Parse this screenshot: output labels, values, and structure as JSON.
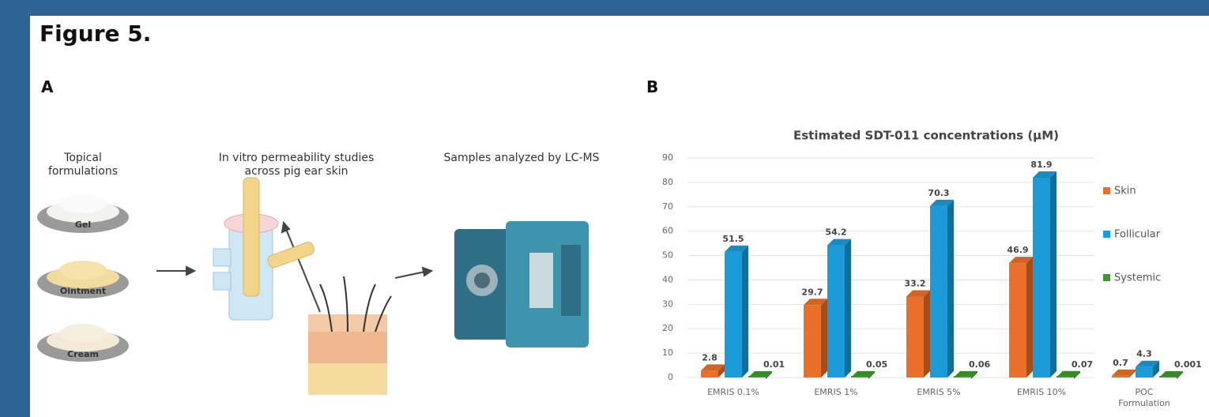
{
  "figure_label": "Figure 5.",
  "panel_a": {
    "label": "A",
    "steps": [
      "Topical formulations",
      "In vitro permeability studies across pig ear skin",
      "Samples analyzed by LC-MS"
    ],
    "formulations": [
      "Gel",
      "Ointment",
      "Cream"
    ]
  },
  "panel_b": {
    "label": "B"
  },
  "chart_data": {
    "type": "bar",
    "title": "Estimated SDT-011 concentrations (μM)",
    "categories": [
      "EMRIS 0.1%",
      "EMRIS 1%",
      "EMRIS 5%",
      "EMRIS 10%",
      "POC Formulation"
    ],
    "series": [
      {
        "name": "Skin",
        "color": "#e8702a",
        "values": [
          2.8,
          29.7,
          33.2,
          46.9,
          0.7
        ]
      },
      {
        "name": "Follicular",
        "color": "#1b9bd7",
        "values": [
          51.5,
          54.2,
          70.3,
          81.9,
          4.3
        ]
      },
      {
        "name": "Systemic",
        "color": "#3c9a2c",
        "values": [
          0.01,
          0.05,
          0.06,
          0.07,
          0.001
        ]
      }
    ],
    "ylim": [
      0,
      90
    ],
    "yticks": [
      0,
      10,
      20,
      30,
      40,
      50,
      60,
      70,
      80,
      90
    ],
    "grid": true,
    "legend": "right"
  }
}
